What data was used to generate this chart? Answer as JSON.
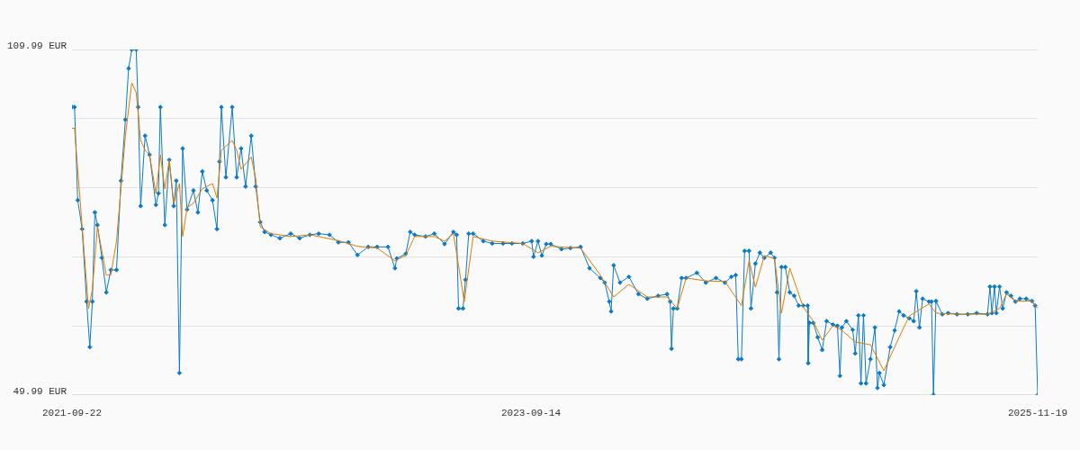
{
  "chart_data": {
    "type": "line",
    "xlim": [
      "2021-09-22",
      "2025-11-19"
    ],
    "xticks": [
      "2021-09-22",
      "2023-09-14",
      "2025-11-19"
    ],
    "ylim": [
      49.99,
      109.99
    ],
    "yticks": [
      {
        "value": 49.99,
        "label": "49.99 EUR"
      },
      {
        "value": 61.99,
        "label": null
      },
      {
        "value": 73.99,
        "label": null
      },
      {
        "value": 85.99,
        "label": null
      },
      {
        "value": 97.99,
        "label": null
      },
      {
        "value": 109.99,
        "label": "109.99 EUR"
      }
    ],
    "grid": "y",
    "legend": false,
    "line_style": "solid",
    "series": [
      {
        "color": "#0a7bc8",
        "marker": "diamond",
        "x": [
          "2021-09-22",
          "2021-09-26",
          "2021-10-01",
          "2021-10-08",
          "2021-10-15",
          "2021-10-20",
          "2021-10-24",
          "2021-10-28",
          "2021-11-01",
          "2021-11-08",
          "2021-11-15",
          "2021-11-22",
          "2021-12-01",
          "2021-12-08",
          "2021-12-15",
          "2021-12-20",
          "2021-12-25",
          "2022-01-01",
          "2022-01-04",
          "2022-01-08",
          "2022-01-15",
          "2022-01-22",
          "2022-02-01",
          "2022-02-05",
          "2022-02-08",
          "2022-02-15",
          "2022-02-22",
          "2022-03-01",
          "2022-03-05",
          "2022-03-10",
          "2022-03-15",
          "2022-03-22",
          "2022-04-01",
          "2022-04-08",
          "2022-04-15",
          "2022-04-22",
          "2022-05-01",
          "2022-05-08",
          "2022-05-12",
          "2022-05-15",
          "2022-05-22",
          "2022-06-01",
          "2022-06-08",
          "2022-06-15",
          "2022-06-22",
          "2022-07-01",
          "2022-07-08",
          "2022-07-15",
          "2022-07-22",
          "2022-08-01",
          "2022-08-15",
          "2022-09-01",
          "2022-09-15",
          "2022-10-01",
          "2022-10-15",
          "2022-11-01",
          "2022-11-15",
          "2022-12-01",
          "2022-12-15",
          "2023-01-01",
          "2023-01-15",
          "2023-02-01",
          "2023-02-12",
          "2023-02-15",
          "2023-03-01",
          "2023-03-08",
          "2023-03-15",
          "2023-04-01",
          "2023-04-15",
          "2023-05-01",
          "2023-05-15",
          "2023-05-20",
          "2023-05-23",
          "2023-05-30",
          "2023-06-03",
          "2023-06-08",
          "2023-06-15",
          "2023-07-01",
          "2023-07-15",
          "2023-08-01",
          "2023-08-15",
          "2023-09-01",
          "2023-09-15",
          "2023-09-18",
          "2023-09-25",
          "2023-10-01",
          "2023-10-08",
          "2023-10-15",
          "2023-11-01",
          "2023-11-15",
          "2023-12-01",
          "2023-12-15",
          "2024-01-01",
          "2024-01-08",
          "2024-01-15",
          "2024-01-18",
          "2024-01-22",
          "2024-02-01",
          "2024-02-15",
          "2024-03-01",
          "2024-03-15",
          "2024-04-01",
          "2024-04-15",
          "2024-04-20",
          "2024-04-22",
          "2024-04-25",
          "2024-05-01",
          "2024-05-08",
          "2024-05-15",
          "2024-06-01",
          "2024-06-15",
          "2024-07-01",
          "2024-07-15",
          "2024-07-25",
          "2024-08-01",
          "2024-08-05",
          "2024-08-10",
          "2024-08-15",
          "2024-08-22",
          "2024-08-25",
          "2024-09-01",
          "2024-09-08",
          "2024-09-15",
          "2024-09-25",
          "2024-10-01",
          "2024-10-05",
          "2024-10-08",
          "2024-10-12",
          "2024-10-18",
          "2024-10-25",
          "2024-11-01",
          "2024-11-08",
          "2024-11-15",
          "2024-11-22",
          "2024-11-23",
          "2024-11-25",
          "2024-12-01",
          "2024-12-08",
          "2024-12-15",
          "2024-12-22",
          "2025-01-01",
          "2025-01-08",
          "2025-01-12",
          "2025-01-15",
          "2025-01-22",
          "2025-02-01",
          "2025-02-05",
          "2025-02-10",
          "2025-02-14",
          "2025-02-18",
          "2025-02-22",
          "2025-03-01",
          "2025-03-08",
          "2025-03-12",
          "2025-03-15",
          "2025-03-22",
          "2025-04-01",
          "2025-04-08",
          "2025-04-15",
          "2025-04-22",
          "2025-05-01",
          "2025-05-08",
          "2025-05-12",
          "2025-05-17",
          "2025-05-22",
          "2025-06-01",
          "2025-06-05",
          "2025-06-08",
          "2025-06-12",
          "2025-06-22",
          "2025-07-01",
          "2025-07-15",
          "2025-08-01",
          "2025-08-15",
          "2025-09-01",
          "2025-09-05",
          "2025-09-08",
          "2025-09-12",
          "2025-09-15",
          "2025-09-20",
          "2025-09-25",
          "2025-10-01",
          "2025-10-08",
          "2025-10-15",
          "2025-10-22",
          "2025-11-01",
          "2025-11-10",
          "2025-11-15",
          "2025-11-19"
        ],
        "values": [
          99.99,
          99.99,
          83.8,
          78.8,
          66.2,
          58.3,
          66.2,
          81.7,
          79.5,
          73.8,
          67.8,
          71.7,
          71.7,
          87.2,
          97.8,
          106.7,
          109.99,
          109.99,
          99.99,
          82.8,
          95.0,
          91.7,
          83.0,
          85.0,
          99.99,
          79.5,
          90.8,
          82.8,
          87.2,
          53.8,
          92.8,
          82.2,
          85.5,
          81.7,
          88.8,
          85.5,
          83.8,
          78.8,
          90.5,
          99.99,
          87.8,
          99.99,
          87.8,
          92.8,
          86.2,
          95.0,
          86.2,
          80.0,
          78.3,
          77.8,
          77.2,
          78.0,
          77.2,
          77.8,
          78.0,
          77.8,
          76.5,
          76.5,
          74.3,
          75.7,
          75.7,
          75.7,
          72.0,
          73.7,
          74.5,
          78.3,
          77.8,
          77.5,
          78.0,
          76.2,
          78.3,
          77.8,
          65.0,
          65.0,
          70.0,
          78.0,
          78.0,
          76.7,
          76.3,
          76.3,
          76.3,
          76.3,
          76.7,
          74.0,
          76.7,
          74.2,
          76.2,
          76.2,
          75.3,
          75.5,
          75.7,
          72.0,
          70.3,
          69.5,
          66.2,
          64.5,
          72.5,
          69.5,
          70.5,
          67.5,
          66.7,
          67.2,
          67.5,
          66.2,
          58.0,
          65.0,
          65.0,
          70.3,
          70.3,
          71.2,
          69.5,
          70.3,
          69.5,
          70.5,
          70.8,
          56.2,
          56.2,
          75.0,
          75.0,
          65.0,
          72.8,
          74.7,
          73.8,
          74.7,
          73.8,
          67.8,
          56.2,
          72.2,
          72.2,
          67.8,
          67.2,
          65.5,
          65.5,
          65.5,
          55.5,
          62.5,
          62.5,
          60.0,
          57.8,
          62.8,
          62.2,
          62.0,
          53.3,
          61.7,
          62.8,
          61.3,
          57.2,
          63.8,
          52.0,
          63.8,
          52.0,
          56.2,
          61.7,
          51.2,
          53.8,
          51.7,
          58.3,
          61.2,
          64.5,
          63.8,
          63.3,
          62.8,
          68.0,
          61.7,
          66.7,
          66.2,
          66.2,
          49.99,
          66.3,
          64.0,
          64.2,
          64.0,
          64.0,
          64.2,
          64.0,
          68.8,
          64.2,
          68.8,
          64.2,
          68.8,
          65.0,
          67.8,
          67.2,
          66.2,
          66.7,
          66.7,
          66.3,
          65.5,
          49.99
        ]
      },
      {
        "color": "#e07b00",
        "marker": "none",
        "x": [
          "2021-09-22",
          "2021-09-26",
          "2021-10-08",
          "2021-10-18",
          "2021-10-24",
          "2021-11-01",
          "2021-11-08",
          "2021-11-15",
          "2021-11-22",
          "2021-12-01",
          "2021-12-08",
          "2021-12-15",
          "2021-12-25",
          "2022-01-01",
          "2022-01-08",
          "2022-01-15",
          "2022-01-22",
          "2022-02-01",
          "2022-02-08",
          "2022-02-15",
          "2022-02-22",
          "2022-03-01",
          "2022-03-10",
          "2022-03-15",
          "2022-03-22",
          "2022-04-01",
          "2022-04-15",
          "2022-05-01",
          "2022-05-08",
          "2022-05-15",
          "2022-06-01",
          "2022-06-08",
          "2022-06-15",
          "2022-07-01",
          "2022-07-08",
          "2022-07-15",
          "2022-08-01",
          "2022-09-01",
          "2022-10-01",
          "2022-11-15",
          "2022-12-15",
          "2023-01-15",
          "2023-02-12",
          "2023-03-01",
          "2023-03-15",
          "2023-04-15",
          "2023-05-01",
          "2023-05-15",
          "2023-06-01",
          "2023-06-15",
          "2023-07-15",
          "2023-09-01",
          "2023-09-25",
          "2023-10-15",
          "2023-12-01",
          "2024-01-01",
          "2024-01-22",
          "2024-02-15",
          "2024-03-15",
          "2024-04-15",
          "2024-05-01",
          "2024-05-15",
          "2024-06-15",
          "2024-07-15",
          "2024-08-10",
          "2024-08-22",
          "2024-09-01",
          "2024-09-15",
          "2024-10-01",
          "2024-10-12",
          "2024-10-25",
          "2024-11-15",
          "2024-12-01",
          "2024-12-15",
          "2025-01-01",
          "2025-01-15",
          "2025-02-05",
          "2025-03-01",
          "2025-03-22",
          "2025-04-15",
          "2025-05-01",
          "2025-06-01",
          "2025-06-12",
          "2025-07-15",
          "2025-09-01",
          "2025-09-20",
          "2025-10-01",
          "2025-10-15",
          "2025-11-10",
          "2025-11-19"
        ],
        "values": [
          96.3,
          96.3,
          79.2,
          65.0,
          68.3,
          79.2,
          75.0,
          70.8,
          70.8,
          76.7,
          85.8,
          95.0,
          104.2,
          102.5,
          94.2,
          92.5,
          91.7,
          85.0,
          91.7,
          85.8,
          90.8,
          83.3,
          86.7,
          77.5,
          82.5,
          83.3,
          85.8,
          86.7,
          84.2,
          92.5,
          94.2,
          92.5,
          89.2,
          91.3,
          87.5,
          79.2,
          78.0,
          77.5,
          77.8,
          76.8,
          75.8,
          75.5,
          73.3,
          74.2,
          77.5,
          77.5,
          76.7,
          78.0,
          66.2,
          77.5,
          76.7,
          76.3,
          74.7,
          75.8,
          75.5,
          70.8,
          67.0,
          69.2,
          67.0,
          67.0,
          65.0,
          70.3,
          69.8,
          69.7,
          65.5,
          73.3,
          68.7,
          74.2,
          73.7,
          64.2,
          72.0,
          65.3,
          62.8,
          59.5,
          62.0,
          61.2,
          59.2,
          58.7,
          54.2,
          60.0,
          63.7,
          65.8,
          64.2,
          64.0,
          64.0,
          65.0,
          67.5,
          66.3,
          66.3,
          65.0
        ]
      }
    ]
  }
}
